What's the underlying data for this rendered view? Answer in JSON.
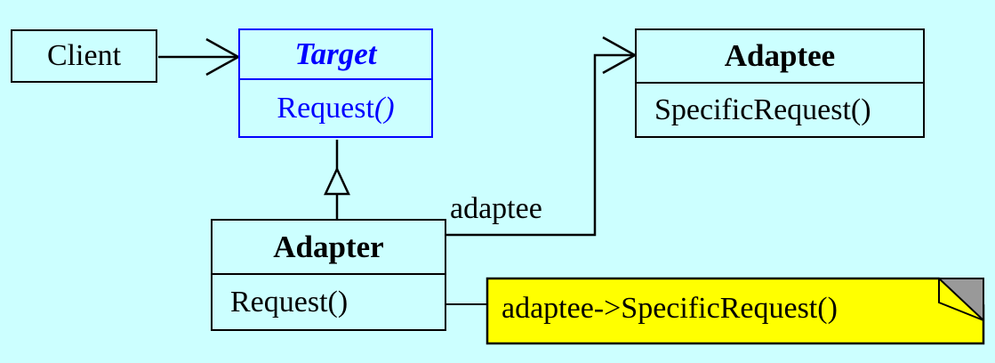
{
  "classes": {
    "client": {
      "name": "Client"
    },
    "target": {
      "name": "Target",
      "operation": "Request",
      "operation_suffix": "()"
    },
    "adaptee": {
      "name": "Adaptee",
      "operation": "SpecificRequest()"
    },
    "adapter": {
      "name": "Adapter",
      "operation": "Request()"
    }
  },
  "association": {
    "role": "adaptee"
  },
  "note": {
    "text": "adaptee->SpecificRequest()"
  },
  "colors": {
    "background": "#ccffff",
    "target": "#0000ff",
    "note_fill": "#ffff00",
    "note_fold": "#999999"
  }
}
